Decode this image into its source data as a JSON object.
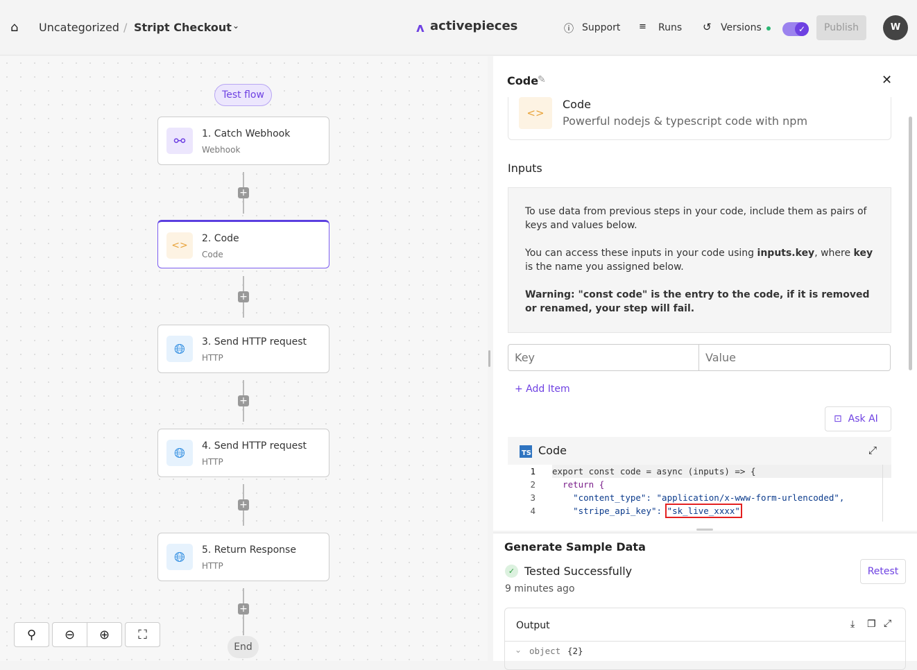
{
  "header": {
    "breadcrumb_folder": "Uncategorized",
    "separator": "/",
    "flow_name": "Stript Checkout",
    "logo_text": "activepieces",
    "support": "Support",
    "runs": "Runs",
    "versions": "Versions",
    "publish": "Publish",
    "avatar": "W",
    "toggle_on": true,
    "brand_color": "#6e41e2"
  },
  "canvas": {
    "test_flow": "Test flow",
    "end": "End",
    "nodes": [
      {
        "title": "1. Catch Webhook",
        "subtitle": "Webhook",
        "icon": "webhook-icon"
      },
      {
        "title": "2. Code",
        "subtitle": "Code",
        "icon": "code-icon",
        "selected": true
      },
      {
        "title": "3. Send HTTP request",
        "subtitle": "HTTP",
        "icon": "globe-icon"
      },
      {
        "title": "4. Send HTTP request",
        "subtitle": "HTTP",
        "icon": "globe-icon"
      },
      {
        "title": "5. Return Response",
        "subtitle": "HTTP",
        "icon": "globe-icon"
      }
    ]
  },
  "panel": {
    "title": "Code",
    "piece_name": "Code",
    "piece_desc": "Powerful nodejs & typescript code with npm",
    "inputs_label": "Inputs",
    "info_p1": "To use data from previous steps in your code, include them as pairs of keys and values below.",
    "info_p2_a": "You can access these inputs in your code using ",
    "info_p2_b": "inputs.key",
    "info_p2_c": ", where ",
    "info_p2_d": "key",
    "info_p2_e": " is the name you assigned below.",
    "info_p3": "Warning: \"const code\" is the entry to the code, if it is removed or renamed, your step will fail.",
    "key_placeholder": "Key",
    "value_placeholder": "Value",
    "add_item": "+ Add Item",
    "ask_ai": "Ask AI",
    "editor_title": "Code",
    "editor_badge": "TS",
    "code_lines": [
      {
        "n": "1",
        "text": "export const code = async (inputs) => {"
      },
      {
        "n": "2",
        "text": "  return {"
      },
      {
        "n": "3",
        "text": "    \"content_type\": \"application/x-www-form-urlencoded\","
      },
      {
        "n": "4",
        "text": "    \"stripe_api_key\": ",
        "highlight": "\"sk_live_xxxx\""
      }
    ]
  },
  "sample": {
    "title": "Generate Sample Data",
    "status": "Tested Successfully",
    "time": "9 minutes ago",
    "retest": "Retest",
    "output_label": "Output",
    "output_value": "object",
    "output_count": "{2}"
  }
}
